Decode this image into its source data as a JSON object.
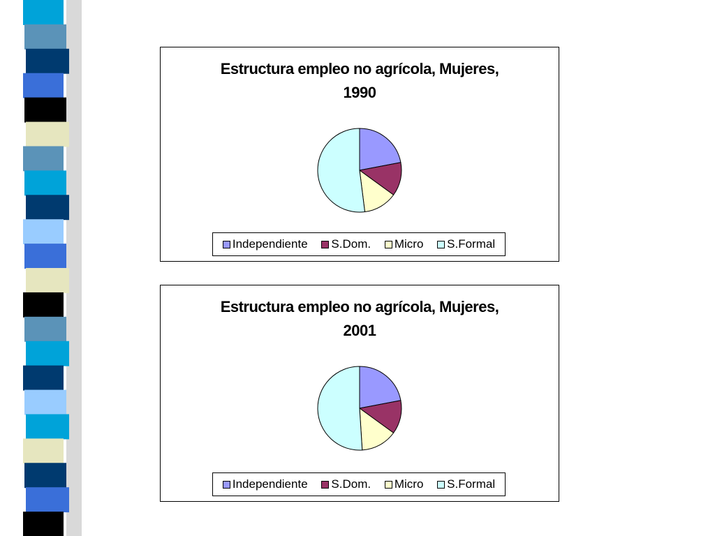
{
  "theme": {
    "strip_colors": [
      "#00a3d9",
      "#5b93b8",
      "#003a6f",
      "#3a6fd9",
      "#000000",
      "#e6e6bf",
      "#5b93b8",
      "#00a3d9",
      "#003a6f",
      "#99ccff",
      "#3a6fd9",
      "#e6e6bf",
      "#000000",
      "#5b93b8",
      "#00a3d9",
      "#003a6f",
      "#99ccff",
      "#00a3d9",
      "#e6e6bf",
      "#003a6f",
      "#3a6fd9",
      "#000000"
    ]
  },
  "chart_data": [
    {
      "type": "pie",
      "title": "Estructura empleo no agrícola, Mujeres, 1990",
      "title_lines": [
        "Estructura empleo no agrícola, Mujeres,",
        "1990"
      ],
      "categories": [
        "Independiente",
        "S.Dom.",
        "Micro",
        "S.Formal"
      ],
      "values": [
        22,
        13,
        13,
        52
      ],
      "colors": [
        "#9999ff",
        "#993366",
        "#ffffcc",
        "#ccffff"
      ],
      "legend_position": "bottom"
    },
    {
      "type": "pie",
      "title": "Estructura empleo no agrícola, Mujeres, 2001",
      "title_lines": [
        "Estructura empleo no agrícola, Mujeres,",
        "2001"
      ],
      "categories": [
        "Independiente",
        "S.Dom.",
        "Micro",
        "S.Formal"
      ],
      "values": [
        22,
        13,
        14,
        51
      ],
      "colors": [
        "#9999ff",
        "#993366",
        "#ffffcc",
        "#ccffff"
      ],
      "legend_position": "bottom"
    }
  ]
}
